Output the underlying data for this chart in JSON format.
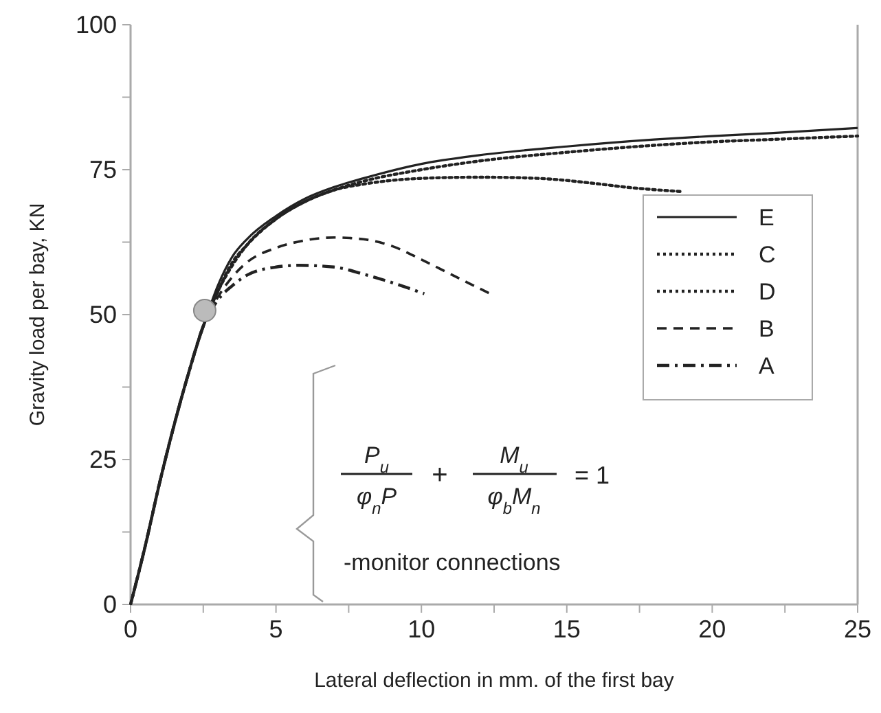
{
  "chart_data": {
    "type": "line",
    "xlabel": "Lateral deflection in mm. of the first bay",
    "ylabel": "Gravity load per bay, KN",
    "xlim": [
      0,
      25
    ],
    "ylim": [
      0,
      100
    ],
    "xticks": [
      0,
      {
        "value": 2.5,
        "label": null
      },
      5,
      {
        "value": 7.5,
        "label": null
      },
      10,
      {
        "value": 12.5,
        "label": null
      },
      15,
      {
        "value": 17.5,
        "label": null
      },
      20,
      {
        "value": 22.5,
        "label": null
      },
      25
    ],
    "yticks": [
      0,
      {
        "value": 12.5,
        "label": null
      },
      25,
      {
        "value": 37.5,
        "label": null
      },
      50,
      {
        "value": 62.5,
        "label": null
      },
      75,
      {
        "value": 87.5,
        "label": null
      },
      100
    ],
    "legend": "right",
    "grid": false,
    "series": [
      {
        "name": "E",
        "color": "#222222",
        "line_style": "solid",
        "x": [
          0,
          0.5,
          1,
          1.5,
          2,
          2.5,
          3,
          3.5,
          4,
          5,
          6,
          7,
          8,
          10,
          12,
          15,
          18,
          20,
          22,
          25
        ],
        "values": [
          0,
          10,
          21,
          31,
          40,
          48,
          55,
          60,
          63,
          67,
          70,
          72,
          73.5,
          76,
          77.5,
          79,
          80.2,
          80.8,
          81.3,
          82.2
        ]
      },
      {
        "name": "C",
        "color": "#222222",
        "line_style": "dotted",
        "x": [
          0,
          0.5,
          1,
          1.5,
          2,
          2.5,
          3,
          3.5,
          4,
          5,
          6,
          7,
          8,
          10,
          12,
          15,
          18,
          20,
          22,
          25
        ],
        "values": [
          0,
          10,
          21,
          31,
          40,
          48,
          54,
          59,
          62,
          66.5,
          69.5,
          71.5,
          73,
          75,
          76.5,
          78,
          79.2,
          79.8,
          80.2,
          80.8
        ]
      },
      {
        "name": "D",
        "color": "#222222",
        "line_style": "dotted",
        "x": [
          0,
          0.5,
          1,
          1.5,
          2,
          2.5,
          3,
          3.5,
          4,
          5,
          6,
          7,
          8,
          10,
          12,
          14,
          16,
          17,
          19
        ],
        "values": [
          0,
          10,
          21,
          31,
          40,
          48,
          54,
          58.5,
          62,
          66.5,
          69.5,
          71.5,
          72.5,
          73.5,
          73.7,
          73.5,
          72.6,
          72,
          71.2
        ]
      },
      {
        "name": "B",
        "color": "#222222",
        "line_style": "dashed",
        "x": [
          0,
          0.5,
          1,
          1.5,
          2,
          2.5,
          3,
          3.5,
          4,
          5,
          6,
          7,
          8,
          9,
          10,
          11,
          12.4
        ],
        "values": [
          0,
          10,
          21,
          31,
          40,
          48,
          53,
          56.5,
          59,
          61.5,
          62.8,
          63.3,
          63,
          61.8,
          59.5,
          57,
          53.5
        ]
      },
      {
        "name": "A",
        "color": "#222222",
        "line_style": "dashdot",
        "x": [
          0,
          0.5,
          1,
          1.5,
          2,
          2.5,
          3,
          3.5,
          4,
          5,
          5.8,
          7,
          8,
          9,
          10.1
        ],
        "values": [
          0,
          10,
          21,
          31,
          40,
          48,
          52.5,
          55,
          56.8,
          58.2,
          58.5,
          58.2,
          57,
          55.5,
          53.6
        ]
      },
      {
        "type": "scatter",
        "color": "#bbbbbb",
        "marker": "circle",
        "x": [
          2.55
        ],
        "values": [
          50.7
        ]
      }
    ],
    "annotations": [
      "P$_{u}$",
      "φ$_{n}$P",
      "+",
      "M$_{u}$",
      "φ$_{b}$M$_{n}$",
      "= 1",
      "-monitor  connections"
    ]
  }
}
